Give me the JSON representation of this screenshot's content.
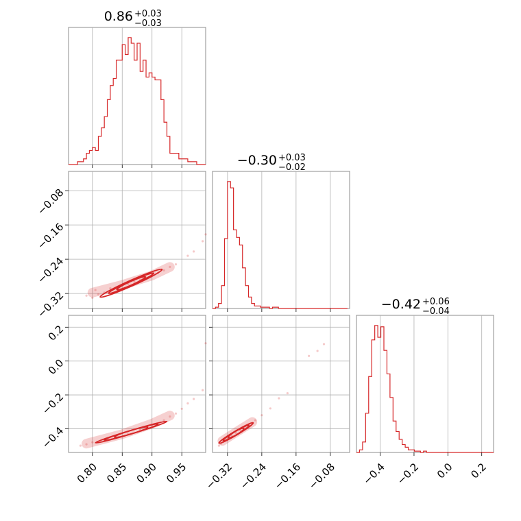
{
  "accent_color": "#d62728",
  "chart_data": {
    "type": "corner",
    "parameters": [
      {
        "id": "p1",
        "title": {
          "value": "0.86",
          "plus": "+0.03",
          "minus": "−0.03"
        },
        "range": [
          0.76,
          0.99
        ],
        "ticks": [
          0.8,
          0.85,
          0.9,
          0.95
        ],
        "tick_labels": [
          "0.80",
          "0.85",
          "0.90",
          "0.95"
        ]
      },
      {
        "id": "p2",
        "title": {
          "value": "−0.30",
          "plus": "+0.03",
          "minus": "−0.02"
        },
        "range": [
          -0.355,
          -0.035
        ],
        "ticks": [
          -0.32,
          -0.24,
          -0.16,
          -0.08
        ],
        "tick_labels": [
          "−0.32",
          "−0.24",
          "−0.16",
          "−0.08"
        ]
      },
      {
        "id": "p3",
        "title": {
          "value": "−0.42",
          "plus": "+0.06",
          "minus": "−0.04"
        },
        "range": [
          -0.54,
          0.27
        ],
        "ticks": [
          -0.4,
          -0.2,
          0.0,
          0.2
        ],
        "tick_labels": [
          "−0.4",
          "−0.2",
          "0.0",
          "0.2"
        ]
      }
    ],
    "histograms": [
      {
        "param": "p1",
        "bins": [
          0.76,
          0.765,
          0.77,
          0.775,
          0.78,
          0.785,
          0.79,
          0.795,
          0.8,
          0.805,
          0.81,
          0.815,
          0.82,
          0.825,
          0.83,
          0.835,
          0.84,
          0.845,
          0.85,
          0.855,
          0.86,
          0.865,
          0.87,
          0.875,
          0.88,
          0.885,
          0.89,
          0.895,
          0.9,
          0.905,
          0.91,
          0.915,
          0.92,
          0.925,
          0.93,
          0.935,
          0.94,
          0.945,
          0.95,
          0.955,
          0.96,
          0.965,
          0.97,
          0.975,
          0.98,
          0.985,
          0.99
        ],
        "counts": [
          0,
          0,
          0,
          2,
          2,
          4,
          8,
          10,
          12,
          10,
          20,
          26,
          34,
          46,
          56,
          61,
          74,
          74,
          85,
          78,
          90,
          86,
          74,
          86,
          66,
          74,
          62,
          65,
          62,
          60,
          60,
          46,
          30,
          20,
          8,
          8,
          8,
          4,
          4,
          4,
          2,
          2,
          2,
          0,
          0,
          0
        ]
      },
      {
        "param": "p2",
        "bins": [
          -0.355,
          -0.348,
          -0.341,
          -0.334,
          -0.327,
          -0.32,
          -0.313,
          -0.306,
          -0.299,
          -0.292,
          -0.285,
          -0.278,
          -0.271,
          -0.264,
          -0.257,
          -0.25,
          -0.243,
          -0.236,
          -0.229,
          -0.222,
          -0.215,
          -0.208,
          -0.201,
          -0.194,
          -0.187,
          -0.18,
          -0.173,
          -0.166,
          -0.159,
          -0.152,
          -0.145,
          -0.138,
          -0.131,
          -0.124,
          -0.117,
          -0.11,
          -0.103,
          -0.096,
          -0.089,
          -0.082,
          -0.075,
          -0.068,
          -0.061,
          -0.054,
          -0.047,
          -0.04
        ],
        "counts": [
          0,
          1,
          4,
          18,
          55,
          100,
          95,
          62,
          56,
          50,
          32,
          18,
          9,
          4,
          2,
          2,
          1,
          1,
          1,
          0,
          1,
          1,
          0,
          0,
          0,
          0,
          0,
          0,
          0,
          0,
          0,
          0,
          0,
          0,
          0,
          0,
          0,
          0,
          0,
          0,
          0,
          0,
          0,
          0,
          0
        ]
      },
      {
        "param": "p3",
        "bins": [
          -0.54,
          -0.522,
          -0.504,
          -0.486,
          -0.468,
          -0.45,
          -0.432,
          -0.414,
          -0.396,
          -0.378,
          -0.36,
          -0.342,
          -0.324,
          -0.306,
          -0.288,
          -0.27,
          -0.252,
          -0.234,
          -0.216,
          -0.198,
          -0.18,
          -0.162,
          -0.144,
          -0.126,
          -0.108,
          -0.09,
          -0.072,
          -0.054,
          -0.036,
          -0.018,
          0.0,
          0.018,
          0.036,
          0.054,
          0.072,
          0.09,
          0.108,
          0.126,
          0.144,
          0.162,
          0.18,
          0.198,
          0.216,
          0.234,
          0.252,
          0.27
        ],
        "counts": [
          0,
          2,
          8,
          30,
          58,
          86,
          97,
          88,
          96,
          78,
          60,
          42,
          24,
          16,
          10,
          6,
          4,
          2,
          2,
          1,
          1,
          0,
          1,
          0,
          0,
          0,
          0,
          0,
          0,
          0,
          0,
          0,
          0,
          0,
          0,
          0,
          0,
          0,
          0,
          0,
          0,
          0,
          0,
          0,
          0
        ]
      }
    ],
    "joint": [
      {
        "x": "p1",
        "y": "p2",
        "ridge": [
          [
            0.8,
            -0.318
          ],
          [
            0.85,
            -0.3
          ],
          [
            0.9,
            -0.278
          ],
          [
            0.93,
            -0.258
          ]
        ],
        "scatter": [
          [
            0.79,
            -0.325
          ],
          [
            0.8,
            -0.33
          ],
          [
            0.805,
            -0.312
          ],
          [
            0.81,
            -0.322
          ],
          [
            0.82,
            -0.318
          ],
          [
            0.83,
            -0.308
          ],
          [
            0.84,
            -0.306
          ],
          [
            0.86,
            -0.298
          ],
          [
            0.87,
            -0.292
          ],
          [
            0.88,
            -0.289
          ],
          [
            0.89,
            -0.283
          ],
          [
            0.9,
            -0.276
          ],
          [
            0.91,
            -0.272
          ],
          [
            0.92,
            -0.266
          ],
          [
            0.93,
            -0.258
          ],
          [
            0.94,
            -0.252
          ],
          [
            0.96,
            -0.232
          ],
          [
            0.97,
            -0.222
          ],
          [
            0.99,
            -0.182
          ],
          [
            0.985,
            -0.198
          ]
        ],
        "contours": [
          {
            "center": [
              0.865,
              -0.296
            ],
            "a": 0.052,
            "b": 0.0072,
            "slope": 0.62
          },
          {
            "center": [
              0.865,
              -0.296
            ],
            "a": 0.038,
            "b": 0.0052,
            "slope": 0.62
          },
          {
            "center": [
              0.865,
              -0.296
            ],
            "a": 0.024,
            "b": 0.0032,
            "slope": 0.62
          }
        ]
      },
      {
        "x": "p1",
        "y": "p3",
        "ridge": [
          [
            0.79,
            -0.488
          ],
          [
            0.85,
            -0.432
          ],
          [
            0.9,
            -0.37
          ],
          [
            0.93,
            -0.322
          ]
        ],
        "scatter": [
          [
            0.78,
            -0.5
          ],
          [
            0.79,
            -0.492
          ],
          [
            0.8,
            -0.48
          ],
          [
            0.82,
            -0.47
          ],
          [
            0.84,
            -0.452
          ],
          [
            0.86,
            -0.428
          ],
          [
            0.88,
            -0.405
          ],
          [
            0.9,
            -0.376
          ],
          [
            0.92,
            -0.35
          ],
          [
            0.93,
            -0.328
          ],
          [
            0.94,
            -0.31
          ],
          [
            0.95,
            -0.282
          ],
          [
            0.96,
            -0.25
          ],
          [
            0.97,
            -0.224
          ],
          [
            0.985,
            -0.172
          ],
          [
            0.99,
            0.105
          ]
        ],
        "contours": [
          {
            "center": [
              0.865,
              -0.42
            ],
            "a": 0.06,
            "b": 0.007,
            "slope": 1.05
          },
          {
            "center": [
              0.865,
              -0.42
            ],
            "a": 0.045,
            "b": 0.005,
            "slope": 1.05
          },
          {
            "center": [
              0.865,
              -0.42
            ],
            "a": 0.028,
            "b": 0.0032,
            "slope": 1.05
          }
        ]
      },
      {
        "x": "p2",
        "y": "p3",
        "ridge": [
          [
            -0.332,
            -0.472
          ],
          [
            -0.3,
            -0.42
          ],
          [
            -0.262,
            -0.36
          ]
        ],
        "scatter": [
          [
            -0.34,
            -0.5
          ],
          [
            -0.335,
            -0.488
          ],
          [
            -0.33,
            -0.475
          ],
          [
            -0.32,
            -0.46
          ],
          [
            -0.31,
            -0.44
          ],
          [
            -0.3,
            -0.425
          ],
          [
            -0.29,
            -0.41
          ],
          [
            -0.28,
            -0.39
          ],
          [
            -0.27,
            -0.375
          ],
          [
            -0.255,
            -0.35
          ],
          [
            -0.24,
            -0.32
          ],
          [
            -0.22,
            -0.28
          ],
          [
            -0.2,
            -0.22
          ],
          [
            -0.18,
            -0.19
          ],
          [
            -0.13,
            0.03
          ],
          [
            -0.11,
            0.06
          ],
          [
            -0.095,
            0.1
          ]
        ],
        "contours": [
          {
            "center": [
              -0.3,
              -0.425
            ],
            "a": 0.04,
            "b": 0.014,
            "slope": 1.5
          },
          {
            "center": [
              -0.3,
              -0.425
            ],
            "a": 0.03,
            "b": 0.01,
            "slope": 1.5
          },
          {
            "center": [
              -0.3,
              -0.425
            ],
            "a": 0.018,
            "b": 0.006,
            "slope": 1.5
          }
        ]
      }
    ]
  }
}
